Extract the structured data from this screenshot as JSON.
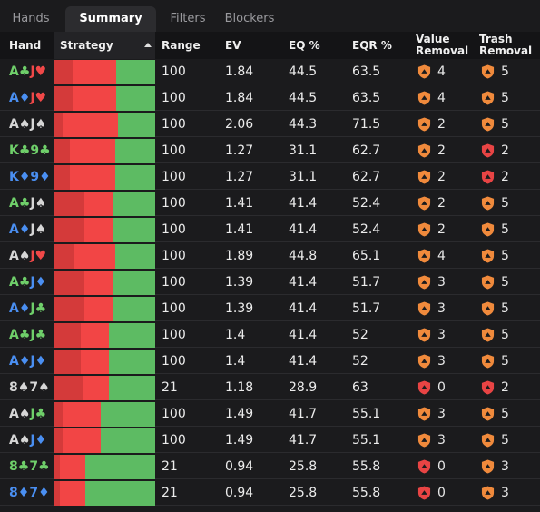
{
  "tabs": [
    {
      "label": "Hands",
      "active": false
    },
    {
      "label": "Summary",
      "active": true
    },
    {
      "label": "Filters",
      "active": false
    },
    {
      "label": "Blockers",
      "active": false
    }
  ],
  "columns": {
    "hand": "Hand",
    "strategy": "Strategy",
    "range": "Range",
    "ev": "EV",
    "eq": "EQ %",
    "eqr": "EQR %",
    "value_removal": [
      "Value",
      "Removal"
    ],
    "trash_removal": [
      "Trash",
      "Removal"
    ]
  },
  "colors": {
    "club": "#6fcf6a",
    "heart": "#f04848",
    "diamond": "#4a8ff2",
    "spade": "#d6d6d6",
    "bet_large": "#d43a3a",
    "bet": "#f24545",
    "check": "#5dbb63",
    "shield_orange": "#f08a3c",
    "shield_red": "#e84444"
  },
  "rows": [
    {
      "r1": "A",
      "s1": "c",
      "r2": "J",
      "s2": "h",
      "strategy": {
        "dark": 0.18,
        "red": 0.43
      },
      "range": "100",
      "ev": "1.84",
      "eq": "44.5",
      "eqr": "63.5",
      "vr": "4",
      "vr_icon": "orange",
      "tr": "5",
      "tr_icon": "orange"
    },
    {
      "r1": "A",
      "s1": "d",
      "r2": "J",
      "s2": "h",
      "strategy": {
        "dark": 0.18,
        "red": 0.43
      },
      "range": "100",
      "ev": "1.84",
      "eq": "44.5",
      "eqr": "63.5",
      "vr": "4",
      "vr_icon": "orange",
      "tr": "5",
      "tr_icon": "orange"
    },
    {
      "r1": "A",
      "s1": "s",
      "r2": "J",
      "s2": "s",
      "strategy": {
        "dark": 0.08,
        "red": 0.55
      },
      "range": "100",
      "ev": "2.06",
      "eq": "44.3",
      "eqr": "71.5",
      "vr": "2",
      "vr_icon": "orange",
      "tr": "5",
      "tr_icon": "orange"
    },
    {
      "r1": "K",
      "s1": "c",
      "r2": "9",
      "s2": "c",
      "strategy": {
        "dark": 0.15,
        "red": 0.45
      },
      "range": "100",
      "ev": "1.27",
      "eq": "31.1",
      "eqr": "62.7",
      "vr": "2",
      "vr_icon": "orange",
      "tr": "2",
      "tr_icon": "red"
    },
    {
      "r1": "K",
      "s1": "d",
      "r2": "9",
      "s2": "d",
      "strategy": {
        "dark": 0.15,
        "red": 0.45
      },
      "range": "100",
      "ev": "1.27",
      "eq": "31.1",
      "eqr": "62.7",
      "vr": "2",
      "vr_icon": "orange",
      "tr": "2",
      "tr_icon": "red"
    },
    {
      "r1": "A",
      "s1": "c",
      "r2": "J",
      "s2": "s",
      "strategy": {
        "dark": 0.3,
        "red": 0.28
      },
      "range": "100",
      "ev": "1.41",
      "eq": "41.4",
      "eqr": "52.4",
      "vr": "2",
      "vr_icon": "orange",
      "tr": "5",
      "tr_icon": "orange"
    },
    {
      "r1": "A",
      "s1": "d",
      "r2": "J",
      "s2": "s",
      "strategy": {
        "dark": 0.3,
        "red": 0.28
      },
      "range": "100",
      "ev": "1.41",
      "eq": "41.4",
      "eqr": "52.4",
      "vr": "2",
      "vr_icon": "orange",
      "tr": "5",
      "tr_icon": "orange"
    },
    {
      "r1": "A",
      "s1": "s",
      "r2": "J",
      "s2": "h",
      "strategy": {
        "dark": 0.2,
        "red": 0.4
      },
      "range": "100",
      "ev": "1.89",
      "eq": "44.8",
      "eqr": "65.1",
      "vr": "4",
      "vr_icon": "orange",
      "tr": "5",
      "tr_icon": "orange"
    },
    {
      "r1": "A",
      "s1": "c",
      "r2": "J",
      "s2": "d",
      "strategy": {
        "dark": 0.3,
        "red": 0.28
      },
      "range": "100",
      "ev": "1.39",
      "eq": "41.4",
      "eqr": "51.7",
      "vr": "3",
      "vr_icon": "orange",
      "tr": "5",
      "tr_icon": "orange"
    },
    {
      "r1": "A",
      "s1": "d",
      "r2": "J",
      "s2": "c",
      "strategy": {
        "dark": 0.3,
        "red": 0.28
      },
      "range": "100",
      "ev": "1.39",
      "eq": "41.4",
      "eqr": "51.7",
      "vr": "3",
      "vr_icon": "orange",
      "tr": "5",
      "tr_icon": "orange"
    },
    {
      "r1": "A",
      "s1": "c",
      "r2": "J",
      "s2": "c",
      "strategy": {
        "dark": 0.26,
        "red": 0.28
      },
      "range": "100",
      "ev": "1.4",
      "eq": "41.4",
      "eqr": "52",
      "vr": "3",
      "vr_icon": "orange",
      "tr": "5",
      "tr_icon": "orange"
    },
    {
      "r1": "A",
      "s1": "d",
      "r2": "J",
      "s2": "d",
      "strategy": {
        "dark": 0.26,
        "red": 0.28
      },
      "range": "100",
      "ev": "1.4",
      "eq": "41.4",
      "eqr": "52",
      "vr": "3",
      "vr_icon": "orange",
      "tr": "5",
      "tr_icon": "orange"
    },
    {
      "r1": "8",
      "s1": "s",
      "r2": "7",
      "s2": "s",
      "strategy": {
        "dark": 0.28,
        "red": 0.26
      },
      "range": "21",
      "ev": "1.18",
      "eq": "28.9",
      "eqr": "63",
      "vr": "0",
      "vr_icon": "red",
      "tr": "2",
      "tr_icon": "red"
    },
    {
      "r1": "A",
      "s1": "s",
      "r2": "J",
      "s2": "c",
      "strategy": {
        "dark": 0.08,
        "red": 0.38
      },
      "range": "100",
      "ev": "1.49",
      "eq": "41.7",
      "eqr": "55.1",
      "vr": "3",
      "vr_icon": "orange",
      "tr": "5",
      "tr_icon": "orange"
    },
    {
      "r1": "A",
      "s1": "s",
      "r2": "J",
      "s2": "d",
      "strategy": {
        "dark": 0.08,
        "red": 0.38
      },
      "range": "100",
      "ev": "1.49",
      "eq": "41.7",
      "eqr": "55.1",
      "vr": "3",
      "vr_icon": "orange",
      "tr": "5",
      "tr_icon": "orange"
    },
    {
      "r1": "8",
      "s1": "c",
      "r2": "7",
      "s2": "c",
      "strategy": {
        "dark": 0.05,
        "red": 0.26
      },
      "range": "21",
      "ev": "0.94",
      "eq": "25.8",
      "eqr": "55.8",
      "vr": "0",
      "vr_icon": "red",
      "tr": "3",
      "tr_icon": "orange"
    },
    {
      "r1": "8",
      "s1": "d",
      "r2": "7",
      "s2": "d",
      "strategy": {
        "dark": 0.05,
        "red": 0.26
      },
      "range": "21",
      "ev": "0.94",
      "eq": "25.8",
      "eqr": "55.8",
      "vr": "0",
      "vr_icon": "red",
      "tr": "3",
      "tr_icon": "orange"
    }
  ]
}
